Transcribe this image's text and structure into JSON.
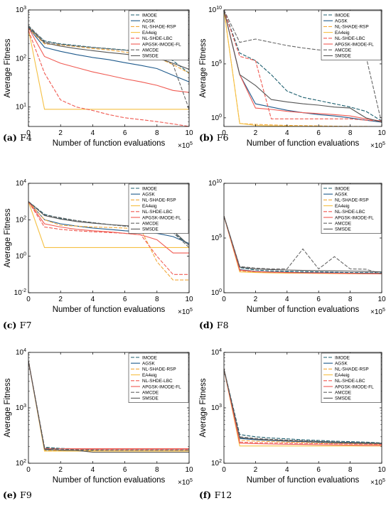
{
  "styles": {
    "IMODE": {
      "color": "#1c5e6e",
      "dash": "5,2"
    },
    "AGSK": {
      "color": "#1f5a8c",
      "dash": ""
    },
    "NL-SHADE-RSP": {
      "color": "#f2a93b",
      "dash": "5,2"
    },
    "EA4eig": {
      "color": "#f5c043",
      "dash": ""
    },
    "NL-SHDE-LBC": {
      "color": "#f05a52",
      "dash": "5,2"
    },
    "APGSK-IMODE-FL": {
      "color": "#f05a52",
      "dash": ""
    },
    "AMCDE": {
      "color": "#666666",
      "dash": "5,2"
    },
    "SMSDE": {
      "color": "#555555",
      "dash": ""
    }
  },
  "chart_data": [
    {
      "type": "line",
      "caption_letter": "(a)",
      "caption_text": "F4",
      "xlabel": "Number of function evaluations",
      "ylabel": "Average Fitness",
      "x_multiplier": "×10",
      "x_multiplier_exp": "5",
      "xlim": [
        0,
        10
      ],
      "xticks": [
        "0",
        "2",
        "4",
        "6",
        "8",
        "10"
      ],
      "yscale": "log",
      "ylim_exp": [
        0.6,
        3
      ],
      "yticks": [
        {
          "base": "10",
          "exp": "1",
          "v": 1
        },
        {
          "base": "10",
          "exp": "2",
          "v": 2
        },
        {
          "base": "10",
          "exp": "3",
          "v": 3
        }
      ],
      "x": [
        0,
        1,
        2,
        3,
        4,
        5,
        6,
        7,
        8,
        9,
        10
      ],
      "series": [
        {
          "name": "IMODE",
          "values": [
            450,
            230,
            200,
            185,
            170,
            160,
            150,
            140,
            130,
            90,
            50
          ]
        },
        {
          "name": "AGSK",
          "values": [
            430,
            170,
            140,
            120,
            105,
            95,
            82,
            72,
            62,
            45,
            33
          ]
        },
        {
          "name": "NL-SHADE-RSP",
          "values": [
            420,
            200,
            190,
            175,
            160,
            150,
            135,
            120,
            105,
            75,
            50
          ]
        },
        {
          "name": "EA4eig",
          "values": [
            400,
            9,
            9,
            9,
            9,
            9,
            9,
            9,
            9,
            9,
            9
          ]
        },
        {
          "name": "NL-SHDE-LBC",
          "values": [
            380,
            50,
            14,
            10,
            8.5,
            7,
            6,
            5.5,
            5,
            4.5,
            4
          ]
        },
        {
          "name": "APGSK-IMODE-FL",
          "values": [
            430,
            110,
            80,
            65,
            53,
            45,
            38,
            33,
            28,
            22,
            20
          ]
        },
        {
          "name": "AMCDE",
          "values": [
            480,
            220,
            195,
            180,
            168,
            158,
            148,
            138,
            125,
            75,
            9
          ]
        },
        {
          "name": "SMSDE",
          "values": [
            440,
            210,
            180,
            160,
            145,
            133,
            123,
            113,
            103,
            80,
            60
          ]
        }
      ]
    },
    {
      "type": "line",
      "caption_letter": "(b)",
      "caption_text": "F6",
      "xlabel": "Number of function evaluations",
      "ylabel": "Average Fitness",
      "x_multiplier": "×10",
      "x_multiplier_exp": "5",
      "xlim": [
        0,
        10
      ],
      "xticks": [
        "0",
        "2",
        "4",
        "6",
        "8",
        "10"
      ],
      "yscale": "log",
      "ylim_exp": [
        -0.8,
        10
      ],
      "yticks": [
        {
          "base": "10",
          "exp": "0",
          "v": 0
        },
        {
          "base": "10",
          "exp": "5",
          "v": 5
        },
        {
          "base": "10",
          "exp": "10",
          "v": 10
        }
      ],
      "x": [
        0,
        1,
        2,
        3,
        4,
        5,
        6,
        7,
        8,
        9,
        10
      ],
      "series": [
        {
          "name": "IMODE",
          "values": [
            10000000000.0,
            1000000.0,
            200000.0,
            10000.0,
            300,
            80,
            40,
            20,
            10,
            4,
            0.5
          ]
        },
        {
          "name": "AGSK",
          "values": [
            10000000000.0,
            10000.0,
            20,
            10,
            5,
            3,
            2,
            1.5,
            1,
            0.6,
            0.4
          ]
        },
        {
          "name": "NL-SHADE-RSP",
          "values": [
            10000000000.0,
            0.3,
            0.25,
            0.22,
            0.2,
            0.19,
            0.18,
            0.17,
            0.16,
            0.16,
            0.15
          ]
        },
        {
          "name": "EA4eig",
          "values": [
            10000000000.0,
            0.3,
            0.2,
            0.18,
            0.17,
            0.16,
            0.16,
            0.15,
            0.15,
            0.15,
            0.15
          ]
        },
        {
          "name": "NL-SHDE-LBC",
          "values": [
            10000000000.0,
            500000.0,
            200000.0,
            0.8,
            0.8,
            0.8,
            0.8,
            0.8,
            0.8,
            0.6,
            0.5
          ]
        },
        {
          "name": "APGSK-IMODE-FL",
          "values": [
            10000000000.0,
            10000.0,
            8,
            6,
            4,
            3,
            2.5,
            2,
            1.5,
            0.8,
            0.5
          ]
        },
        {
          "name": "AMCDE",
          "values": [
            10000000000.0,
            10000000.0,
            20000000.0,
            10000000.0,
            5000000.0,
            3000000.0,
            2000000.0,
            1500000.0,
            1000000.0,
            500000.0,
            0.3
          ]
        },
        {
          "name": "SMSDE",
          "values": [
            10000000000.0,
            10000.0,
            1000.0,
            50,
            30,
            20,
            15,
            10,
            8,
            1,
            0.4
          ]
        }
      ]
    },
    {
      "type": "line",
      "caption_letter": "(c)",
      "caption_text": "F7",
      "xlabel": "Number of function evaluations",
      "ylabel": "Average Fitness",
      "x_multiplier": "×10",
      "x_multiplier_exp": "5",
      "xlim": [
        0,
        10
      ],
      "xticks": [
        "0",
        "2",
        "4",
        "6",
        "8",
        "10"
      ],
      "yscale": "log",
      "ylim_exp": [
        -2,
        4
      ],
      "yticks": [
        {
          "base": "10",
          "exp": "-2",
          "v": -2
        },
        {
          "base": "10",
          "exp": "0",
          "v": 0
        },
        {
          "base": "10",
          "exp": "2",
          "v": 2
        },
        {
          "base": "10",
          "exp": "4",
          "v": 4
        }
      ],
      "x": [
        0,
        1,
        2,
        3,
        4,
        5,
        6,
        7,
        8,
        9,
        10
      ],
      "series": [
        {
          "name": "IMODE",
          "values": [
            1000,
            200,
            120,
            90,
            70,
            55,
            45,
            38,
            30,
            20,
            4
          ]
        },
        {
          "name": "AGSK",
          "values": [
            1000,
            100,
            60,
            45,
            35,
            30,
            25,
            22,
            18,
            12,
            5
          ]
        },
        {
          "name": "NL-SHADE-RSP",
          "values": [
            1000,
            100,
            50,
            45,
            40,
            38,
            35,
            30,
            0.5,
            0.05,
            0.05
          ]
        },
        {
          "name": "EA4eig",
          "values": [
            1000,
            3,
            3,
            3,
            3,
            3,
            3,
            3,
            3,
            3,
            3
          ]
        },
        {
          "name": "NL-SHDE-LBC",
          "values": [
            1000,
            40,
            30,
            25,
            22,
            20,
            18,
            15,
            1,
            0.1,
            0.1
          ]
        },
        {
          "name": "APGSK-IMODE-FL",
          "values": [
            1000,
            60,
            40,
            30,
            25,
            22,
            18,
            15,
            8,
            1.5,
            1.5
          ]
        },
        {
          "name": "AMCDE",
          "values": [
            1000,
            180,
            130,
            90,
            70,
            55,
            45,
            40,
            35,
            20,
            3
          ]
        },
        {
          "name": "SMSDE",
          "values": [
            1000,
            170,
            110,
            80,
            65,
            55,
            48,
            42,
            35,
            25,
            4
          ]
        }
      ]
    },
    {
      "type": "line",
      "caption_letter": "(d)",
      "caption_text": "F8",
      "xlabel": "Number of function evaluations",
      "ylabel": "",
      "x_multiplier": "×10",
      "x_multiplier_exp": "5",
      "xlim": [
        0,
        10
      ],
      "xticks": [
        "0",
        "2",
        "4",
        "6",
        "8",
        "10"
      ],
      "yscale": "log",
      "ylim_exp": [
        0,
        10
      ],
      "yticks": [
        {
          "base": "10",
          "exp": "0",
          "v": 0
        },
        {
          "base": "10",
          "exp": "5",
          "v": 5
        },
        {
          "base": "10",
          "exp": "10",
          "v": 10
        }
      ],
      "x": [
        0,
        1,
        2,
        3,
        4,
        5,
        6,
        7,
        8,
        9,
        10
      ],
      "series": [
        {
          "name": "IMODE",
          "values": [
            10000000.0,
            200,
            120,
            100,
            90,
            85,
            80,
            75,
            70,
            68,
            65
          ]
        },
        {
          "name": "AGSK",
          "values": [
            10000000.0,
            130,
            90,
            80,
            75,
            70,
            68,
            65,
            62,
            60,
            58
          ]
        },
        {
          "name": "NL-SHADE-RSP",
          "values": [
            10000000.0,
            100,
            80,
            70,
            65,
            62,
            60,
            58,
            56,
            55,
            55
          ]
        },
        {
          "name": "EA4eig",
          "values": [
            10000000.0,
            80,
            70,
            65,
            62,
            60,
            58,
            56,
            55,
            54,
            53
          ]
        },
        {
          "name": "NL-SHDE-LBC",
          "values": [
            10000000.0,
            110,
            85,
            75,
            70,
            66,
            63,
            60,
            58,
            56,
            55
          ]
        },
        {
          "name": "APGSK-IMODE-FL",
          "values": [
            10000000.0,
            120,
            85,
            75,
            70,
            66,
            63,
            60,
            58,
            56,
            54
          ]
        },
        {
          "name": "AMCDE",
          "values": [
            10000000.0,
            250,
            180,
            150,
            150,
            10000,
            150,
            2000,
            150,
            140,
            50
          ]
        },
        {
          "name": "SMSDE",
          "values": [
            10000000.0,
            220,
            150,
            130,
            120,
            110,
            105,
            100,
            95,
            90,
            80
          ]
        }
      ]
    },
    {
      "type": "line",
      "caption_letter": "(e)",
      "caption_text": "F9",
      "xlabel": "Number of function evaluations",
      "ylabel": "Average Fitness",
      "x_multiplier": "×10",
      "x_multiplier_exp": "5",
      "xlim": [
        0,
        10
      ],
      "xticks": [
        "0",
        "2",
        "4",
        "6",
        "8",
        "10"
      ],
      "yscale": "log",
      "ylim_exp": [
        2,
        4
      ],
      "yticks": [
        {
          "base": "10",
          "exp": "2",
          "v": 2
        },
        {
          "base": "10",
          "exp": "3",
          "v": 3
        },
        {
          "base": "10",
          "exp": "4",
          "v": 4
        }
      ],
      "x": [
        0,
        1,
        2,
        3,
        4,
        5,
        6,
        7,
        8,
        9,
        10
      ],
      "series": [
        {
          "name": "IMODE",
          "values": [
            7000,
            195,
            185,
            182,
            180,
            180,
            180,
            180,
            180,
            180,
            180
          ]
        },
        {
          "name": "AGSK",
          "values": [
            7000,
            175,
            172,
            170,
            168,
            168,
            168,
            168,
            168,
            168,
            168
          ]
        },
        {
          "name": "NL-SHADE-RSP",
          "values": [
            7000,
            170,
            170,
            170,
            170,
            170,
            170,
            170,
            170,
            170,
            170
          ]
        },
        {
          "name": "EA4eig",
          "values": [
            7000,
            165,
            165,
            165,
            165,
            165,
            165,
            165,
            165,
            165,
            165
          ]
        },
        {
          "name": "NL-SHDE-LBC",
          "values": [
            7000,
            185,
            180,
            178,
            177,
            177,
            177,
            177,
            177,
            177,
            177
          ]
        },
        {
          "name": "APGSK-IMODE-FL",
          "values": [
            7000,
            183,
            183,
            183,
            183,
            183,
            183,
            183,
            183,
            183,
            183
          ]
        },
        {
          "name": "AMCDE",
          "values": [
            7000,
            190,
            180,
            175,
            172,
            170,
            170,
            170,
            170,
            170,
            170
          ]
        },
        {
          "name": "SMSDE",
          "values": [
            7000,
            180,
            172,
            170,
            158,
            158,
            158,
            158,
            158,
            158,
            158
          ]
        }
      ]
    },
    {
      "type": "line",
      "caption_letter": "(f)",
      "caption_text": "F12",
      "xlabel": "Number of function evaluations",
      "ylabel": "Average Fitness",
      "x_multiplier": "×10",
      "x_multiplier_exp": "5",
      "xlim": [
        0,
        10
      ],
      "xticks": [
        "0",
        "2",
        "4",
        "6",
        "8",
        "10"
      ],
      "yscale": "log",
      "ylim_exp": [
        2,
        4
      ],
      "yticks": [
        {
          "base": "10",
          "exp": "2",
          "v": 2
        },
        {
          "base": "10",
          "exp": "3",
          "v": 3
        },
        {
          "base": "10",
          "exp": "4",
          "v": 4
        }
      ],
      "x": [
        0,
        1,
        2,
        3,
        4,
        5,
        6,
        7,
        8,
        9,
        10
      ],
      "series": [
        {
          "name": "IMODE",
          "values": [
            5000,
            330,
            300,
            285,
            275,
            265,
            258,
            250,
            245,
            240,
            232
          ]
        },
        {
          "name": "AGSK",
          "values": [
            5000,
            280,
            265,
            258,
            250,
            245,
            240,
            235,
            230,
            227,
            225
          ]
        },
        {
          "name": "NL-SHADE-RSP",
          "values": [
            5000,
            260,
            250,
            245,
            240,
            236,
            232,
            228,
            225,
            222,
            220
          ]
        },
        {
          "name": "EA4eig",
          "values": [
            5000,
            205,
            205,
            205,
            205,
            205,
            205,
            205,
            205,
            205,
            205
          ]
        },
        {
          "name": "NL-SHDE-LBC",
          "values": [
            5000,
            240,
            235,
            232,
            230,
            228,
            226,
            224,
            222,
            220,
            218
          ]
        },
        {
          "name": "APGSK-IMODE-FL",
          "values": [
            5000,
            230,
            225,
            222,
            220,
            218,
            216,
            214,
            212,
            210,
            210
          ]
        },
        {
          "name": "AMCDE",
          "values": [
            5000,
            300,
            280,
            270,
            262,
            255,
            248,
            242,
            238,
            234,
            230
          ]
        },
        {
          "name": "SMSDE",
          "values": [
            5000,
            290,
            272,
            262,
            255,
            250,
            245,
            240,
            236,
            232,
            228
          ]
        }
      ]
    }
  ]
}
